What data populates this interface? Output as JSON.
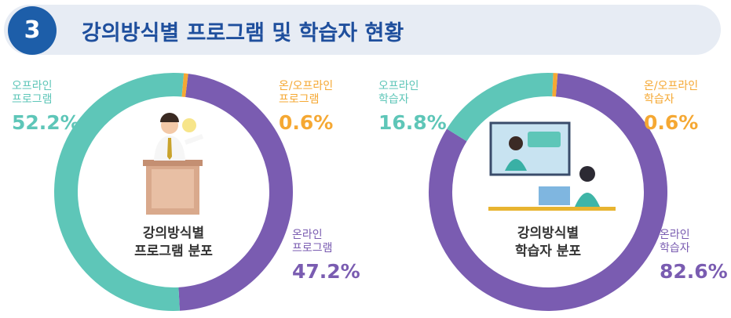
{
  "header": {
    "number": "3",
    "title": "강의방식별 프로그램 및 학습자 현황"
  },
  "chart_data": [
    {
      "type": "donut",
      "title": "강의방식별\n프로그램 분포",
      "categories": [
        "오프라인\n프로그램",
        "온/오프라인\n프로그램",
        "온라인\n프로그램"
      ],
      "values": [
        52.2,
        0.6,
        47.2
      ],
      "value_labels": [
        "52.2%",
        "0.6%",
        "47.2%"
      ],
      "colors": [
        "#5ec6b8",
        "#f5a833",
        "#7a5cb1"
      ]
    },
    {
      "type": "donut",
      "title": "강의방식별\n학습자 분포",
      "categories": [
        "오프라인\n학습자",
        "온/오프라인\n학습자",
        "온라인\n학습자"
      ],
      "values": [
        16.8,
        0.6,
        82.6
      ],
      "value_labels": [
        "16.8%",
        "0.6%",
        "82.6%"
      ],
      "colors": [
        "#5ec6b8",
        "#f5a833",
        "#7a5cb1"
      ]
    }
  ]
}
